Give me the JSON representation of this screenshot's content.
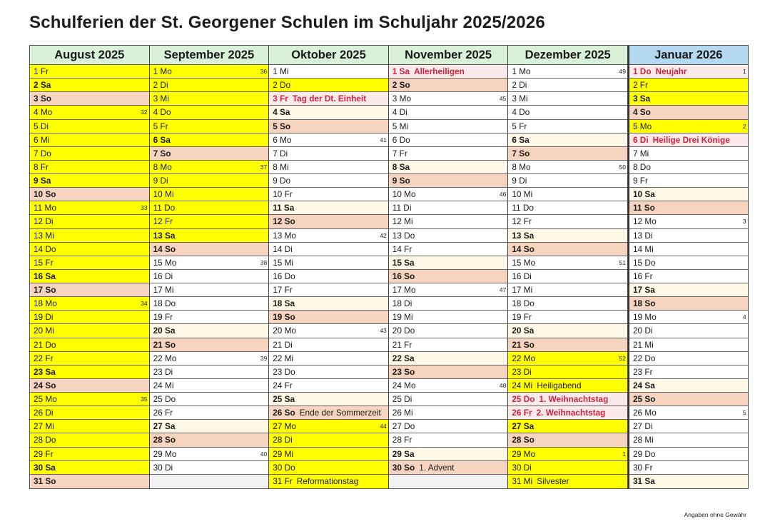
{
  "title": "Schulferien der St. Georgener Schulen im Schuljahr 2025/2026",
  "footer": "Angaben ohne Gewähr",
  "colors": {
    "ferien": "#ffff00",
    "saturday": "#fff8e6",
    "sunday": "#f7d4bf",
    "holiday_text": "#d0213f",
    "holiday_bg": "#fbeaea",
    "header_green": "#d9f0d9",
    "header_blue": "#b4d9f0"
  },
  "months": [
    {
      "label": "August 2025",
      "days": [
        {
          "t": "1 Fr",
          "c": "ferien"
        },
        {
          "t": "2 Sa",
          "c": "ferien sat"
        },
        {
          "t": "3 So",
          "c": "sun"
        },
        {
          "t": "4 Mo",
          "c": "ferien",
          "wk": "32"
        },
        {
          "t": "5 Di",
          "c": "ferien"
        },
        {
          "t": "6 Mi",
          "c": "ferien"
        },
        {
          "t": "7 Do",
          "c": "ferien"
        },
        {
          "t": "8 Fr",
          "c": "ferien"
        },
        {
          "t": "9 Sa",
          "c": "ferien sat"
        },
        {
          "t": "10 So",
          "c": "sun"
        },
        {
          "t": "11 Mo",
          "c": "ferien",
          "wk": "33"
        },
        {
          "t": "12 Di",
          "c": "ferien"
        },
        {
          "t": "13 Mi",
          "c": "ferien"
        },
        {
          "t": "14 Do",
          "c": "ferien"
        },
        {
          "t": "15 Fr",
          "c": "ferien"
        },
        {
          "t": "16 Sa",
          "c": "ferien sat"
        },
        {
          "t": "17 So",
          "c": "sun"
        },
        {
          "t": "18 Mo",
          "c": "ferien",
          "wk": "34"
        },
        {
          "t": "19 Di",
          "c": "ferien"
        },
        {
          "t": "20 Mi",
          "c": "ferien"
        },
        {
          "t": "21 Do",
          "c": "ferien"
        },
        {
          "t": "22 Fr",
          "c": "ferien"
        },
        {
          "t": "23 Sa",
          "c": "ferien sat"
        },
        {
          "t": "24 So",
          "c": "sun"
        },
        {
          "t": "25 Mo",
          "c": "ferien",
          "wk": "35"
        },
        {
          "t": "26 Di",
          "c": "ferien"
        },
        {
          "t": "27 Mi",
          "c": "ferien"
        },
        {
          "t": "28 Do",
          "c": "ferien"
        },
        {
          "t": "29 Fr",
          "c": "ferien"
        },
        {
          "t": "30 Sa",
          "c": "ferien sat"
        },
        {
          "t": "31 So",
          "c": "sun"
        }
      ]
    },
    {
      "label": "September 2025",
      "days": [
        {
          "t": "1 Mo",
          "c": "ferien",
          "wk": "36"
        },
        {
          "t": "2 Di",
          "c": "ferien"
        },
        {
          "t": "3 Mi",
          "c": "ferien"
        },
        {
          "t": "4 Do",
          "c": "ferien"
        },
        {
          "t": "5 Fr",
          "c": "ferien"
        },
        {
          "t": "6 Sa",
          "c": "ferien sat"
        },
        {
          "t": "7 So",
          "c": "sun"
        },
        {
          "t": "8 Mo",
          "c": "ferien",
          "wk": "37"
        },
        {
          "t": "9 Di",
          "c": "ferien"
        },
        {
          "t": "10 Mi",
          "c": "ferien"
        },
        {
          "t": "11 Do",
          "c": "ferien"
        },
        {
          "t": "12 Fr",
          "c": "ferien"
        },
        {
          "t": "13 Sa",
          "c": "ferien sat"
        },
        {
          "t": "14 So",
          "c": "sun"
        },
        {
          "t": "15 Mo",
          "c": "",
          "wk": "38"
        },
        {
          "t": "16 Di",
          "c": ""
        },
        {
          "t": "17 Mi",
          "c": ""
        },
        {
          "t": "18 Do",
          "c": ""
        },
        {
          "t": "19 Fr",
          "c": ""
        },
        {
          "t": "20 Sa",
          "c": "sat"
        },
        {
          "t": "21 So",
          "c": "sun"
        },
        {
          "t": "22 Mo",
          "c": "",
          "wk": "39"
        },
        {
          "t": "23 Di",
          "c": ""
        },
        {
          "t": "24 Mi",
          "c": ""
        },
        {
          "t": "25 Do",
          "c": ""
        },
        {
          "t": "26 Fr",
          "c": ""
        },
        {
          "t": "27 Sa",
          "c": "sat"
        },
        {
          "t": "28 So",
          "c": "sun"
        },
        {
          "t": "29 Mo",
          "c": "",
          "wk": "40"
        },
        {
          "t": "30 Di",
          "c": ""
        },
        {
          "t": "",
          "c": "empty"
        }
      ]
    },
    {
      "label": "Oktober 2025",
      "days": [
        {
          "t": "1 Mi",
          "c": ""
        },
        {
          "t": "2 Do",
          "c": "ferien"
        },
        {
          "t": "3 Fr",
          "c": "holiday",
          "note": "Tag der Dt. Einheit"
        },
        {
          "t": "4 Sa",
          "c": "sat"
        },
        {
          "t": "5 So",
          "c": "sun"
        },
        {
          "t": "6 Mo",
          "c": "",
          "wk": "41"
        },
        {
          "t": "7 Di",
          "c": ""
        },
        {
          "t": "8 Mi",
          "c": ""
        },
        {
          "t": "9 Do",
          "c": ""
        },
        {
          "t": "10 Fr",
          "c": ""
        },
        {
          "t": "11 Sa",
          "c": "sat"
        },
        {
          "t": "12 So",
          "c": "sun"
        },
        {
          "t": "13 Mo",
          "c": "",
          "wk": "42"
        },
        {
          "t": "14 Di",
          "c": ""
        },
        {
          "t": "15 Mi",
          "c": ""
        },
        {
          "t": "16 Do",
          "c": ""
        },
        {
          "t": "17 Fr",
          "c": ""
        },
        {
          "t": "18 Sa",
          "c": "sat"
        },
        {
          "t": "19 So",
          "c": "sun"
        },
        {
          "t": "20 Mo",
          "c": "",
          "wk": "43"
        },
        {
          "t": "21 Di",
          "c": ""
        },
        {
          "t": "22 Mi",
          "c": ""
        },
        {
          "t": "23 Do",
          "c": ""
        },
        {
          "t": "24 Fr",
          "c": ""
        },
        {
          "t": "25 Sa",
          "c": "sat"
        },
        {
          "t": "26 So",
          "c": "sun",
          "note": "Ende der Sommerzeit",
          "noteNormal": true
        },
        {
          "t": "27 Mo",
          "c": "ferien",
          "wk": "44"
        },
        {
          "t": "28 Di",
          "c": "ferien"
        },
        {
          "t": "29 Mi",
          "c": "ferien"
        },
        {
          "t": "30 Do",
          "c": "ferien"
        },
        {
          "t": "31 Fr",
          "c": "ferien",
          "note": "Reformationstag"
        }
      ]
    },
    {
      "label": "November 2025",
      "days": [
        {
          "t": "1 Sa",
          "c": "holiday",
          "note": "Allerheiligen"
        },
        {
          "t": "2 So",
          "c": "sun"
        },
        {
          "t": "3 Mo",
          "c": "",
          "wk": "45"
        },
        {
          "t": "4 Di",
          "c": ""
        },
        {
          "t": "5 Mi",
          "c": ""
        },
        {
          "t": "6 Do",
          "c": ""
        },
        {
          "t": "7 Fr",
          "c": ""
        },
        {
          "t": "8 Sa",
          "c": "sat"
        },
        {
          "t": "9 So",
          "c": "sun"
        },
        {
          "t": "10 Mo",
          "c": "",
          "wk": "46"
        },
        {
          "t": "11 Di",
          "c": ""
        },
        {
          "t": "12 Mi",
          "c": ""
        },
        {
          "t": "13 Do",
          "c": ""
        },
        {
          "t": "14 Fr",
          "c": ""
        },
        {
          "t": "15 Sa",
          "c": "sat"
        },
        {
          "t": "16 So",
          "c": "sun"
        },
        {
          "t": "17 Mo",
          "c": "",
          "wk": "47"
        },
        {
          "t": "18 Di",
          "c": ""
        },
        {
          "t": "19 Mi",
          "c": ""
        },
        {
          "t": "20 Do",
          "c": ""
        },
        {
          "t": "21 Fr",
          "c": ""
        },
        {
          "t": "22 Sa",
          "c": "sat"
        },
        {
          "t": "23 So",
          "c": "sun"
        },
        {
          "t": "24 Mo",
          "c": "",
          "wk": "48"
        },
        {
          "t": "25 Di",
          "c": ""
        },
        {
          "t": "26 Mi",
          "c": ""
        },
        {
          "t": "27 Do",
          "c": ""
        },
        {
          "t": "28 Fr",
          "c": ""
        },
        {
          "t": "29 Sa",
          "c": "sat"
        },
        {
          "t": "30 So",
          "c": "sun",
          "note": "1. Advent",
          "noteNormal": true
        },
        {
          "t": "",
          "c": "empty"
        }
      ]
    },
    {
      "label": "Dezember 2025",
      "days": [
        {
          "t": "1 Mo",
          "c": "",
          "wk": "49"
        },
        {
          "t": "2 Di",
          "c": ""
        },
        {
          "t": "3 Mi",
          "c": ""
        },
        {
          "t": "4 Do",
          "c": ""
        },
        {
          "t": "5 Fr",
          "c": ""
        },
        {
          "t": "6 Sa",
          "c": "sat"
        },
        {
          "t": "7 So",
          "c": "sun"
        },
        {
          "t": "8 Mo",
          "c": "",
          "wk": "50"
        },
        {
          "t": "9 Di",
          "c": ""
        },
        {
          "t": "10 Mi",
          "c": ""
        },
        {
          "t": "11 Do",
          "c": ""
        },
        {
          "t": "12 Fr",
          "c": ""
        },
        {
          "t": "13 Sa",
          "c": "sat"
        },
        {
          "t": "14 So",
          "c": "sun"
        },
        {
          "t": "15 Mo",
          "c": "",
          "wk": "51"
        },
        {
          "t": "16 Di",
          "c": ""
        },
        {
          "t": "17 Mi",
          "c": ""
        },
        {
          "t": "18 Do",
          "c": ""
        },
        {
          "t": "19 Fr",
          "c": ""
        },
        {
          "t": "20 Sa",
          "c": "sat"
        },
        {
          "t": "21 So",
          "c": "sun"
        },
        {
          "t": "22 Mo",
          "c": "ferien",
          "wk": "52"
        },
        {
          "t": "23 Di",
          "c": "ferien"
        },
        {
          "t": "24 Mi",
          "c": "ferien",
          "note": "Heiligabend"
        },
        {
          "t": "25 Do",
          "c": "holiday",
          "note": "1. Weihnachtstag"
        },
        {
          "t": "26 Fr",
          "c": "holiday",
          "note": "2. Weihnachtstag"
        },
        {
          "t": "27 Sa",
          "c": "ferien sat"
        },
        {
          "t": "28 So",
          "c": "sun"
        },
        {
          "t": "29 Mo",
          "c": "ferien",
          "wk": "1"
        },
        {
          "t": "30 Di",
          "c": "ferien"
        },
        {
          "t": "31 Mi",
          "c": "ferien",
          "note": "Silvester"
        }
      ]
    },
    {
      "label": "Januar 2026",
      "days": [
        {
          "t": "1 Do",
          "c": "holiday",
          "note": "Neujahr",
          "wk": "1"
        },
        {
          "t": "2 Fr",
          "c": "ferien"
        },
        {
          "t": "3 Sa",
          "c": "ferien sat"
        },
        {
          "t": "4 So",
          "c": "sun"
        },
        {
          "t": "5 Mo",
          "c": "ferien",
          "wk": "2"
        },
        {
          "t": "6 Di",
          "c": "holiday",
          "note": "Heilige Drei Könige"
        },
        {
          "t": "7 Mi",
          "c": ""
        },
        {
          "t": "8 Do",
          "c": ""
        },
        {
          "t": "9 Fr",
          "c": ""
        },
        {
          "t": "10 Sa",
          "c": "sat"
        },
        {
          "t": "11 So",
          "c": "sun"
        },
        {
          "t": "12 Mo",
          "c": "",
          "wk": "3"
        },
        {
          "t": "13 Di",
          "c": ""
        },
        {
          "t": "14 Mi",
          "c": ""
        },
        {
          "t": "15 Do",
          "c": ""
        },
        {
          "t": "16 Fr",
          "c": ""
        },
        {
          "t": "17 Sa",
          "c": "sat"
        },
        {
          "t": "18 So",
          "c": "sun"
        },
        {
          "t": "19 Mo",
          "c": "",
          "wk": "4"
        },
        {
          "t": "20 Di",
          "c": ""
        },
        {
          "t": "21 Mi",
          "c": ""
        },
        {
          "t": "22 Do",
          "c": ""
        },
        {
          "t": "23 Fr",
          "c": ""
        },
        {
          "t": "24 Sa",
          "c": "sat"
        },
        {
          "t": "25 So",
          "c": "sun"
        },
        {
          "t": "26 Mo",
          "c": "",
          "wk": "5"
        },
        {
          "t": "27 Di",
          "c": ""
        },
        {
          "t": "28 Mi",
          "c": ""
        },
        {
          "t": "29 Do",
          "c": ""
        },
        {
          "t": "30 Fr",
          "c": ""
        },
        {
          "t": "31 Sa",
          "c": "sat"
        }
      ]
    }
  ]
}
